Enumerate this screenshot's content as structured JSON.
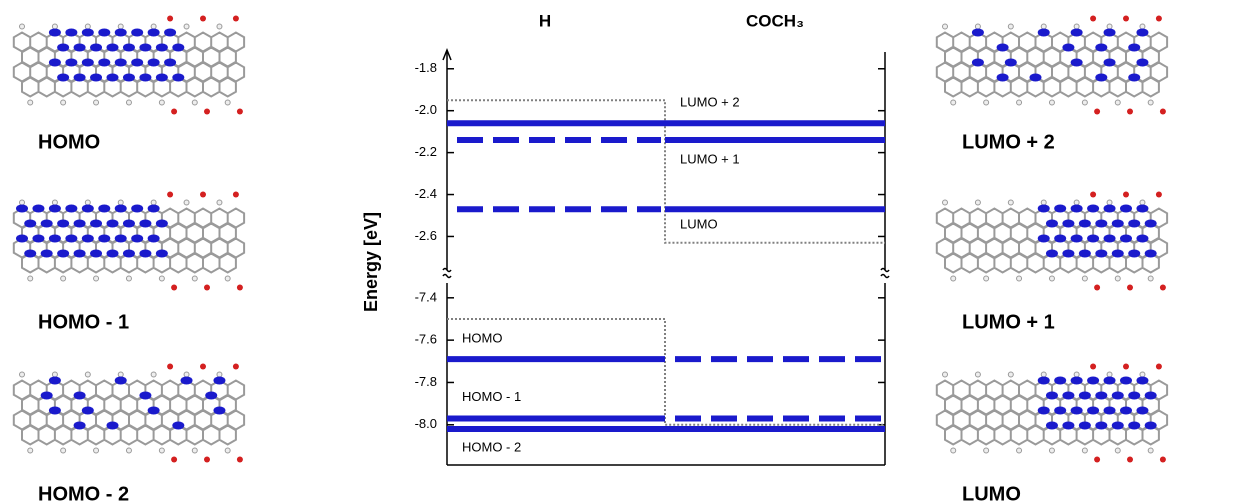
{
  "chart_data": {
    "type": "energy-levels",
    "columns": [
      "H",
      "COCH₃"
    ],
    "y_label": "Energy [eV]",
    "categories": [
      "LUMO + 2",
      "LUMO + 1",
      "LUMO",
      "HOMO",
      "HOMO - 1",
      "HOMO - 2"
    ],
    "values": [
      -2.06,
      -2.14,
      -2.47,
      -7.69,
      -7.97,
      -8.02
    ],
    "solid_in": [
      [
        0,
        1
      ],
      [
        1
      ],
      [
        1
      ],
      [
        0
      ],
      [
        0
      ],
      [
        0,
        1
      ]
    ],
    "color": "#1a1acc",
    "dotted": [
      [
        -1.95,
        -2.63
      ],
      [
        -7.5,
        -8.0
      ]
    ],
    "dotted_color": "#808080",
    "segments": [
      {
        "ylim": [
          -2.76,
          -1.72
        ],
        "yticks": [
          -1.8,
          {
            "value": -2.0,
            "label": "-2.0"
          },
          -2.2,
          -2.4,
          -2.6
        ]
      },
      {
        "ylim": [
          -8.19,
          -7.33
        ],
        "yticks": [
          -7.4,
          -7.6,
          -7.8,
          {
            "value": -8.0,
            "label": "-8.0"
          }
        ]
      }
    ]
  },
  "panels": [
    {
      "label": "HOMO"
    },
    {
      "label": "HOMO - 1"
    },
    {
      "label": "HOMO - 2"
    },
    {
      "label": "LUMO + 2"
    },
    {
      "label": "LUMO + 1"
    },
    {
      "label": "LUMO"
    }
  ]
}
